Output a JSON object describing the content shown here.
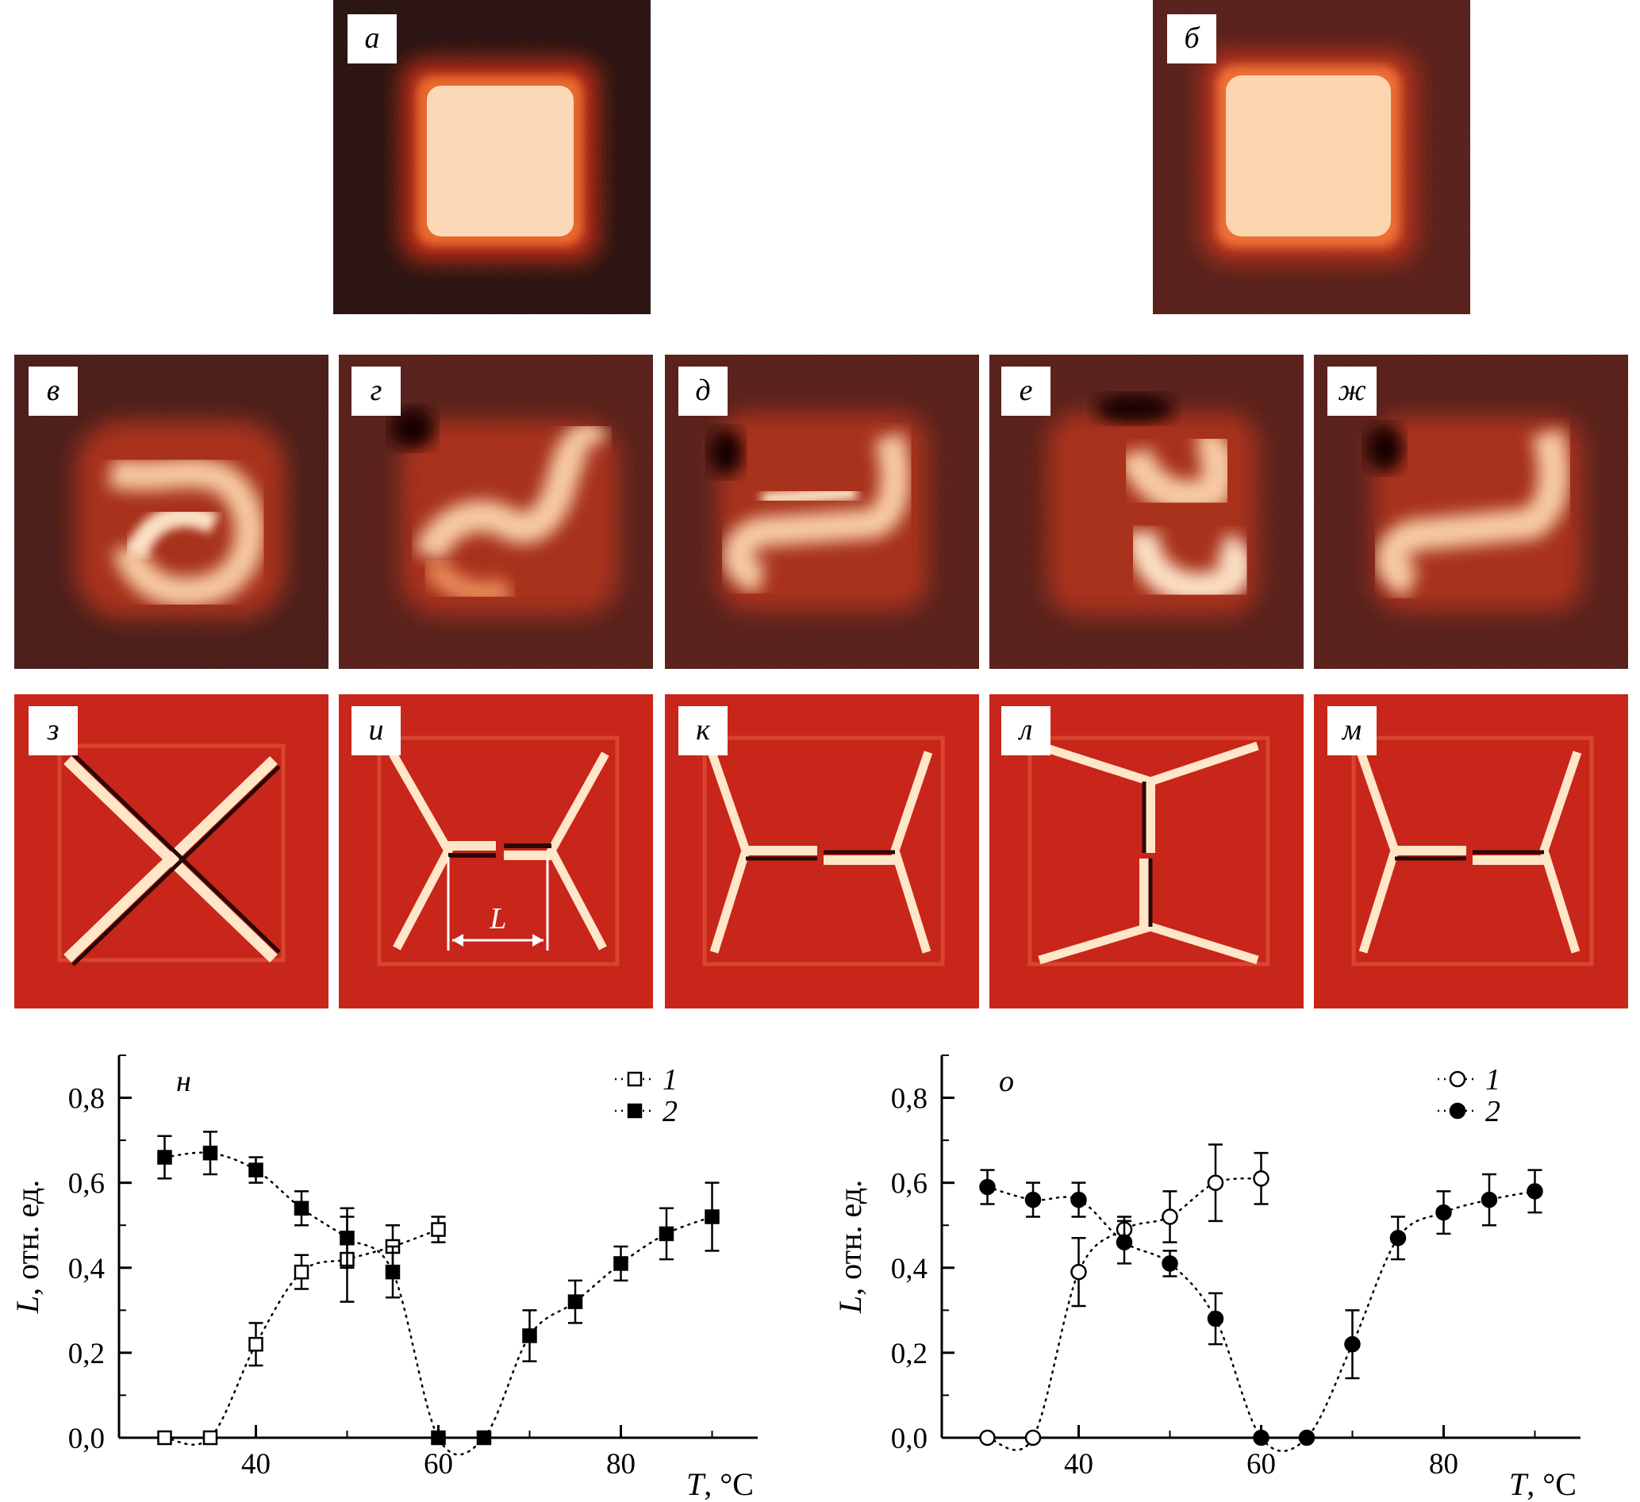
{
  "panels": {
    "a": "а",
    "b": "б",
    "v": "в",
    "g": "г",
    "d": "д",
    "e": "е",
    "zh": "ж",
    "z": "з",
    "i": "и",
    "k": "к",
    "l": "л",
    "m": "м"
  },
  "scale_label": "L",
  "chart_data": [
    {
      "type": "scatter",
      "panel": "н",
      "xlabel_var": "T",
      "xlabel_unit": ", °C",
      "ylabel_var": "L",
      "ylabel_unit": ", отн. ед.",
      "xlim": [
        25,
        95
      ],
      "ylim": [
        0,
        0.9
      ],
      "xticks": [
        40,
        60,
        80
      ],
      "yticks": [
        0.0,
        0.2,
        0.4,
        0.6,
        0.8
      ],
      "ytick_labels": [
        "0,0",
        "0,2",
        "0,4",
        "0,6",
        "0,8"
      ],
      "legend_position": "top-right",
      "series": [
        {
          "name": "1",
          "marker": "open-square",
          "x": [
            30,
            35,
            40,
            45,
            50,
            55,
            60
          ],
          "y": [
            0.0,
            0.0,
            0.22,
            0.39,
            0.42,
            0.45,
            0.49
          ],
          "err": [
            0,
            0,
            0.05,
            0.04,
            0.1,
            0.05,
            0.03
          ]
        },
        {
          "name": "2",
          "marker": "filled-square",
          "x": [
            30,
            35,
            40,
            45,
            50,
            55,
            60,
            65,
            70,
            75,
            80,
            85,
            90
          ],
          "y": [
            0.66,
            0.67,
            0.63,
            0.54,
            0.47,
            0.39,
            0.0,
            0.0,
            0.24,
            0.32,
            0.41,
            0.48,
            0.52
          ],
          "err": [
            0.05,
            0.05,
            0.03,
            0.04,
            0.07,
            0.06,
            0,
            0,
            0.06,
            0.05,
            0.04,
            0.06,
            0.08
          ]
        }
      ]
    },
    {
      "type": "scatter",
      "panel": "о",
      "xlabel_var": "T",
      "xlabel_unit": ", °C",
      "ylabel_var": "L",
      "ylabel_unit": ", отн. ед.",
      "xlim": [
        25,
        95
      ],
      "ylim": [
        0,
        0.9
      ],
      "xticks": [
        40,
        60,
        80
      ],
      "yticks": [
        0.0,
        0.2,
        0.4,
        0.6,
        0.8
      ],
      "ytick_labels": [
        "0,0",
        "0,2",
        "0,4",
        "0,6",
        "0,8"
      ],
      "legend_position": "top-right",
      "series": [
        {
          "name": "1",
          "marker": "open-circle",
          "x": [
            30,
            35,
            40,
            45,
            50,
            55,
            60
          ],
          "y": [
            0.0,
            0.0,
            0.39,
            0.49,
            0.52,
            0.6,
            0.61
          ],
          "err": [
            0,
            0,
            0.08,
            0.03,
            0.06,
            0.09,
            0.06
          ]
        },
        {
          "name": "2",
          "marker": "filled-circle",
          "x": [
            30,
            35,
            40,
            45,
            50,
            55,
            60,
            65,
            70,
            75,
            80,
            85,
            90
          ],
          "y": [
            0.59,
            0.56,
            0.56,
            0.46,
            0.41,
            0.28,
            0.0,
            0.0,
            0.22,
            0.47,
            0.53,
            0.56,
            0.58
          ],
          "err": [
            0.04,
            0.04,
            0.04,
            0.05,
            0.03,
            0.06,
            0,
            0,
            0.08,
            0.05,
            0.05,
            0.06,
            0.05
          ]
        }
      ]
    }
  ]
}
